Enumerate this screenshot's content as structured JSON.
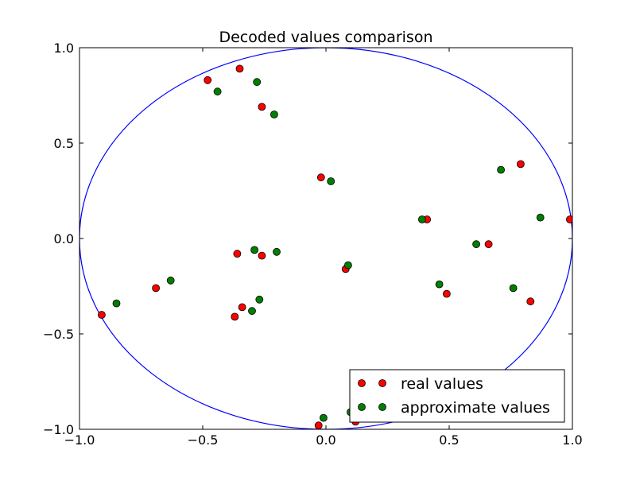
{
  "chart_data": {
    "type": "scatter",
    "title": "Decoded values comparison",
    "xlabel": "",
    "ylabel": "",
    "xlim": [
      -1.0,
      1.0
    ],
    "ylim": [
      -1.0,
      1.0
    ],
    "x_ticks": [
      -1.0,
      -0.5,
      0.0,
      0.5,
      1.0
    ],
    "y_ticks": [
      -1.0,
      -0.5,
      0.0,
      0.5,
      1.0
    ],
    "x_tick_labels": [
      "−1.0",
      "−0.5",
      "0.0",
      "0.5",
      "1.0"
    ],
    "y_tick_labels": [
      "−1.0",
      "−0.5",
      "0.0",
      "0.5",
      "1.0"
    ],
    "grid": false,
    "legend_position": "bottom-right",
    "circle": {
      "center": [
        0,
        0
      ],
      "radius": 1.0,
      "color": "#0000ff"
    },
    "series": [
      {
        "name": "real values",
        "color": "#ff0000",
        "points": [
          [
            -0.48,
            0.83
          ],
          [
            -0.35,
            0.89
          ],
          [
            -0.26,
            0.69
          ],
          [
            -0.02,
            0.32
          ],
          [
            0.79,
            0.39
          ],
          [
            0.99,
            0.1
          ],
          [
            0.41,
            0.1
          ],
          [
            0.66,
            -0.03
          ],
          [
            -0.36,
            -0.08
          ],
          [
            -0.26,
            -0.09
          ],
          [
            0.08,
            -0.16
          ],
          [
            -0.69,
            -0.26
          ],
          [
            -0.34,
            -0.36
          ],
          [
            -0.37,
            -0.41
          ],
          [
            0.49,
            -0.29
          ],
          [
            0.83,
            -0.33
          ],
          [
            -0.91,
            -0.4
          ],
          [
            -0.03,
            -0.98
          ],
          [
            0.12,
            -0.96
          ]
        ]
      },
      {
        "name": "approximate values",
        "color": "#007f00",
        "points": [
          [
            -0.44,
            0.77
          ],
          [
            -0.28,
            0.82
          ],
          [
            -0.21,
            0.65
          ],
          [
            0.02,
            0.3
          ],
          [
            0.71,
            0.36
          ],
          [
            0.87,
            0.11
          ],
          [
            0.39,
            0.1
          ],
          [
            0.61,
            -0.03
          ],
          [
            -0.29,
            -0.06
          ],
          [
            -0.2,
            -0.07
          ],
          [
            0.09,
            -0.14
          ],
          [
            -0.63,
            -0.22
          ],
          [
            -0.27,
            -0.32
          ],
          [
            -0.3,
            -0.38
          ],
          [
            0.46,
            -0.24
          ],
          [
            0.76,
            -0.26
          ],
          [
            -0.85,
            -0.34
          ],
          [
            -0.01,
            -0.94
          ],
          [
            0.1,
            -0.91
          ],
          [
            0.48,
            -0.71
          ]
        ]
      }
    ]
  }
}
